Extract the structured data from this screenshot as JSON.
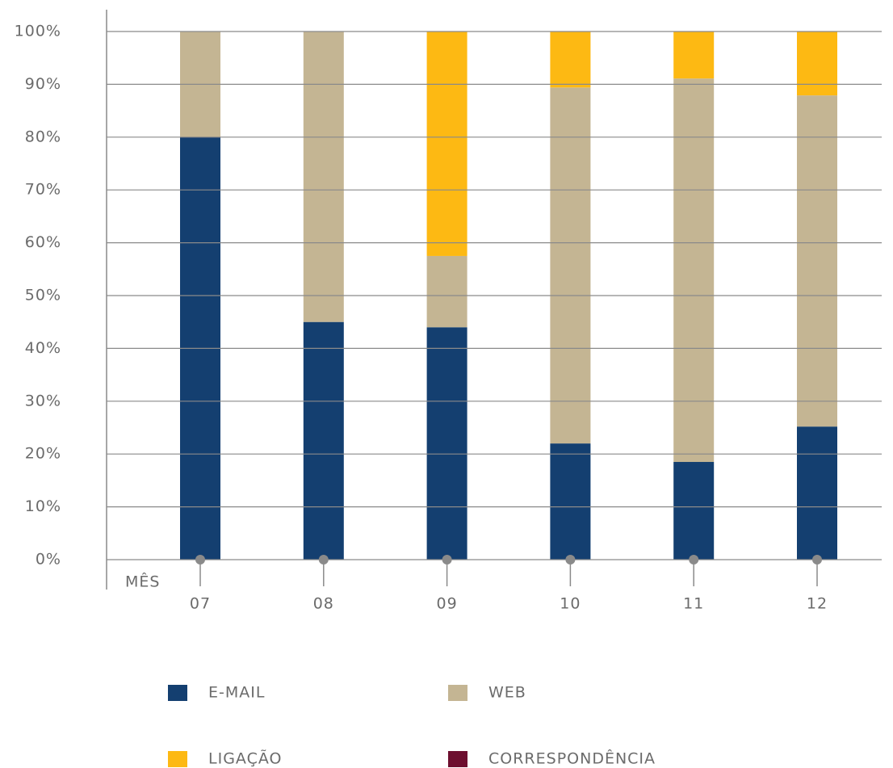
{
  "chart_data": {
    "type": "stacked_bar",
    "x_label": "MÊS",
    "categories": [
      "07",
      "08",
      "09",
      "10",
      "11",
      "12"
    ],
    "series": [
      {
        "name": "E-MAIL",
        "color": "#143f70",
        "values": [
          80,
          45,
          44,
          22,
          18.5,
          25.2
        ]
      },
      {
        "name": "WEB",
        "color": "#c4b593",
        "values": [
          20,
          55,
          13.5,
          67.4,
          72.6,
          62.7
        ]
      },
      {
        "name": "LIGAÇÃO",
        "color": "#fdb913",
        "values": [
          0,
          0,
          42.5,
          10.6,
          8.9,
          12.1
        ]
      },
      {
        "name": "CORRESPONDÊNCIA",
        "color": "#6d0f2f",
        "values": [
          0,
          0,
          0,
          0,
          0,
          0
        ]
      }
    ],
    "ylim": [
      0,
      100
    ],
    "yticks": [
      {
        "value": 0,
        "label": "0%"
      },
      {
        "value": 10,
        "label": "10%"
      },
      {
        "value": 20,
        "label": "20%"
      },
      {
        "value": 30,
        "label": "30%"
      },
      {
        "value": 40,
        "label": "40%"
      },
      {
        "value": 50,
        "label": "50%"
      },
      {
        "value": 60,
        "label": "60%"
      },
      {
        "value": 70,
        "label": "70%"
      },
      {
        "value": 80,
        "label": "80%"
      },
      {
        "value": 90,
        "label": "90%"
      },
      {
        "value": 100,
        "label": "100%"
      }
    ],
    "grid": true
  }
}
